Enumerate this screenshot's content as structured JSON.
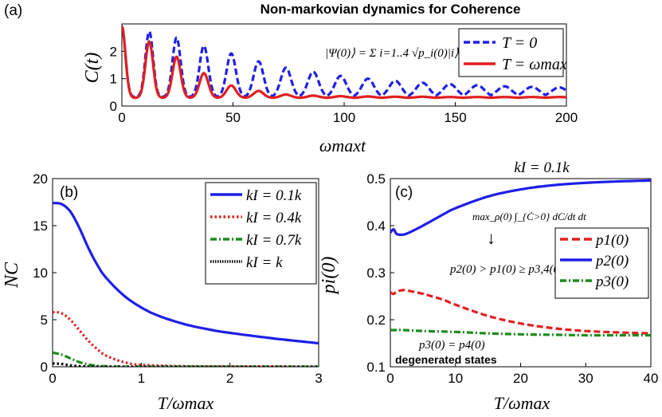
{
  "figure_title": "Non-markovian dynamics for Coherence",
  "colors": {
    "blue": "#1f1fe6",
    "red": "#e01f1f",
    "green": "#1e8a1e",
    "black": "#000000"
  },
  "chart_data": [
    {
      "panel": "(a)",
      "type": "line",
      "title": "Non-markovian dynamics for Coherence",
      "xlabel": "ωmaxt",
      "ylabel": "C(t)",
      "xlim": [
        0,
        200
      ],
      "ylim": [
        0,
        3
      ],
      "xticks": [
        "0",
        "50",
        "100",
        "150",
        "200"
      ],
      "yticks": [
        "0",
        "1",
        "2"
      ],
      "annotation": "|Ψ(0)⟩ = Σ i=1..4 √p_i(0)|i⟩",
      "legend": [
        "T = 0",
        "T = ωmax"
      ],
      "legend_position": "top-right",
      "series": [
        {
          "name": "T = 0",
          "color": "blue",
          "style": "dashed",
          "period": 12.3,
          "baseline": 0.33,
          "peaks": [
            2.9,
            2.72,
            2.5,
            2.2,
            1.92,
            1.63,
            1.4,
            1.25,
            1.1,
            1.0,
            0.92,
            0.85,
            0.8,
            0.76,
            0.72,
            0.7,
            0.68
          ]
        },
        {
          "name": "T = ωmax",
          "color": "red",
          "style": "solid",
          "period": 12.3,
          "baseline": 0.3,
          "peaks": [
            2.9,
            2.35,
            1.8,
            1.2,
            0.75,
            0.55,
            0.42,
            0.38,
            0.36,
            0.35,
            0.34,
            0.34,
            0.33,
            0.33,
            0.33,
            0.33,
            0.33
          ]
        }
      ]
    },
    {
      "panel": "(b)",
      "type": "line",
      "xlabel": "T/ωmax",
      "ylabel": "NC",
      "xlim": [
        0,
        3
      ],
      "ylim": [
        0,
        20
      ],
      "xticks": [
        "0",
        "1",
        "2",
        "3"
      ],
      "yticks": [
        "0",
        "5",
        "10",
        "15",
        "20"
      ],
      "legend": [
        "kI = 0.1k",
        "kI = 0.4k",
        "kI = 0.7k",
        "kI = k"
      ],
      "legend_position": "top-right",
      "series": [
        {
          "name": "kI = 0.1k",
          "color": "blue",
          "style": "solid",
          "x": [
            0,
            0.1,
            0.2,
            0.3,
            0.4,
            0.5,
            0.6,
            0.8,
            1.0,
            1.2,
            1.5,
            1.8,
            2.0,
            2.5,
            3.0
          ],
          "y": [
            17.4,
            17.3,
            16.5,
            14.8,
            12.7,
            10.9,
            9.5,
            7.6,
            6.3,
            5.4,
            4.5,
            3.9,
            3.6,
            3.0,
            2.5
          ]
        },
        {
          "name": "kI = 0.4k",
          "color": "red",
          "style": "dotted",
          "x": [
            0,
            0.1,
            0.2,
            0.3,
            0.4,
            0.5,
            0.6,
            0.8,
            1.0,
            1.5,
            2.0,
            3.0
          ],
          "y": [
            5.8,
            5.7,
            5.0,
            3.9,
            2.8,
            1.9,
            1.2,
            0.5,
            0.2,
            0.05,
            0.02,
            0.0
          ]
        },
        {
          "name": "kI = 0.7k",
          "color": "green",
          "style": "dashdot",
          "x": [
            0,
            0.1,
            0.2,
            0.3,
            0.4,
            0.5,
            0.6,
            0.8,
            1.0,
            3.0
          ],
          "y": [
            1.5,
            1.3,
            0.9,
            0.5,
            0.25,
            0.1,
            0.05,
            0.0,
            0.0,
            0.0
          ]
        },
        {
          "name": "kI = k",
          "color": "black",
          "style": "dotted",
          "x": [
            0,
            0.1,
            0.2,
            0.3,
            0.4,
            0.6,
            3.0
          ],
          "y": [
            0.35,
            0.3,
            0.15,
            0.06,
            0.02,
            0.0,
            0.0
          ]
        }
      ]
    },
    {
      "panel": "(c)",
      "type": "line",
      "title": "kI = 0.1k",
      "xlabel": "T/ωmax",
      "ylabel": "pi(0)",
      "xlim": [
        0,
        40
      ],
      "ylim": [
        0.1,
        0.5
      ],
      "xticks": [
        "0",
        "10",
        "20",
        "30",
        "40"
      ],
      "yticks": [
        "0.1",
        "0.2",
        "0.3",
        "0.4",
        "0.5"
      ],
      "legend": [
        "p1(0)",
        "p2(0)",
        "p3(0)"
      ],
      "legend_position": "right",
      "annotation_optimization": "max_ρ(0) ∫_{Ċ>0} dC/dt dt",
      "annotation_arrow": "↓",
      "annotation_relation": "p2(0) > p1(0) ≥ p3,4(0)",
      "annotation_equal": "p3(0) = p4(0)",
      "annotation_degenerate": "degenerated states",
      "series": [
        {
          "name": "p1(0)",
          "color": "red",
          "style": "dashed",
          "x": [
            0,
            0.5,
            1,
            2,
            3,
            5,
            8,
            10,
            15,
            20,
            25,
            30,
            35,
            40
          ],
          "y": [
            0.258,
            0.255,
            0.26,
            0.263,
            0.261,
            0.255,
            0.243,
            0.232,
            0.208,
            0.192,
            0.182,
            0.176,
            0.173,
            0.171
          ]
        },
        {
          "name": "p2(0)",
          "color": "blue",
          "style": "solid",
          "x": [
            0,
            0.5,
            1,
            2,
            3,
            5,
            8,
            10,
            15,
            20,
            25,
            30,
            35,
            40
          ],
          "y": [
            0.385,
            0.392,
            0.382,
            0.381,
            0.386,
            0.4,
            0.423,
            0.437,
            0.462,
            0.477,
            0.486,
            0.491,
            0.494,
            0.496
          ]
        },
        {
          "name": "p3(0)",
          "color": "green",
          "style": "dashdot",
          "x": [
            0,
            1,
            2,
            5,
            10,
            15,
            20,
            25,
            30,
            35,
            40
          ],
          "y": [
            0.178,
            0.178,
            0.178,
            0.176,
            0.174,
            0.171,
            0.169,
            0.168,
            0.167,
            0.167,
            0.167
          ]
        }
      ]
    }
  ]
}
